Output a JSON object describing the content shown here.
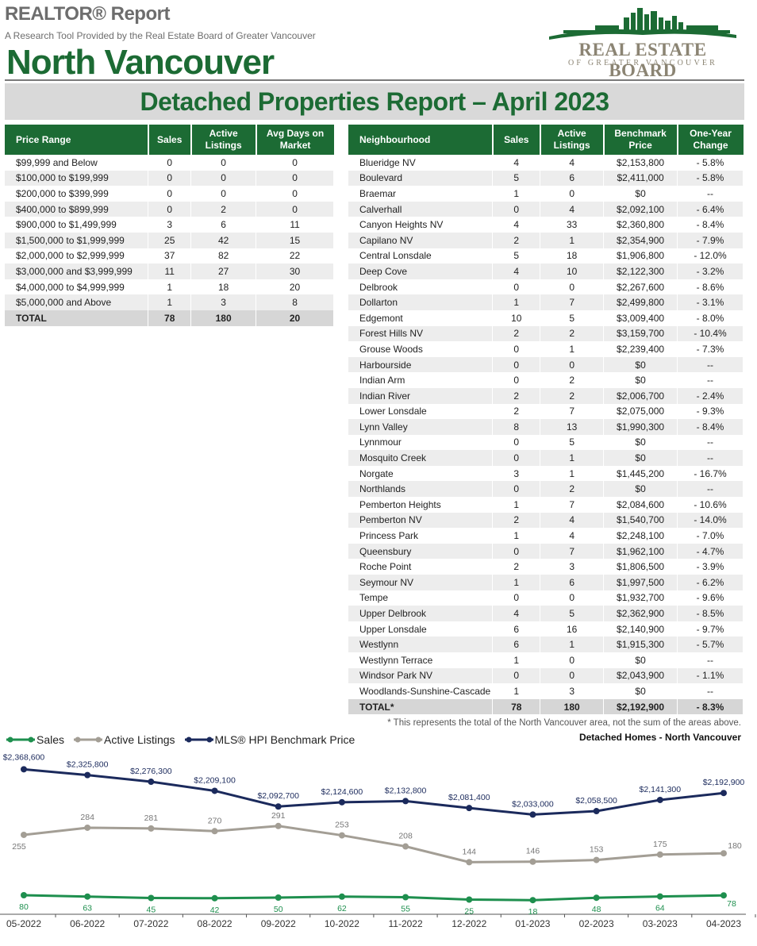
{
  "header": {
    "report_title": "REALTOR® Report",
    "subtitle": "A Research Tool Provided by the Real Estate Board of Greater Vancouver",
    "area": "North Vancouver",
    "logo_name": "REAL ESTATE BOARD",
    "logo_sub": "OF GREATER VANCOUVER",
    "banner": "Detached Properties Report – April 2023"
  },
  "colors": {
    "green": "#1c6b34",
    "brand_green": "#1c6b34",
    "sales": "#1e8f4e",
    "active": "#a39e95",
    "hpi": "#1b2a5c"
  },
  "price_table": {
    "headers": [
      "Price Range",
      "Sales",
      "Active Listings",
      "Avg Days on Market"
    ],
    "rows": [
      [
        "$99,999 and Below",
        "0",
        "0",
        "0"
      ],
      [
        "$100,000 to $199,999",
        "0",
        "0",
        "0"
      ],
      [
        "$200,000 to $399,999",
        "0",
        "0",
        "0"
      ],
      [
        "$400,000 to $899,999",
        "0",
        "2",
        "0"
      ],
      [
        "$900,000 to $1,499,999",
        "3",
        "6",
        "11"
      ],
      [
        "$1,500,000 to $1,999,999",
        "25",
        "42",
        "15"
      ],
      [
        "$2,000,000 to $2,999,999",
        "37",
        "82",
        "22"
      ],
      [
        "$3,000,000 and $3,999,999",
        "11",
        "27",
        "30"
      ],
      [
        "$4,000,000 to $4,999,999",
        "1",
        "18",
        "20"
      ],
      [
        "$5,000,000 and Above",
        "1",
        "3",
        "8"
      ]
    ],
    "total": [
      "TOTAL",
      "78",
      "180",
      "20"
    ]
  },
  "neighbourhood_table": {
    "headers": [
      "Neighbourhood",
      "Sales",
      "Active Listings",
      "Benchmark Price",
      "One-Year Change"
    ],
    "rows": [
      [
        "Blueridge NV",
        "4",
        "4",
        "$2,153,800",
        "- 5.8%"
      ],
      [
        "Boulevard",
        "5",
        "6",
        "$2,411,000",
        "- 5.8%"
      ],
      [
        "Braemar",
        "1",
        "0",
        "$0",
        "--"
      ],
      [
        "Calverhall",
        "0",
        "4",
        "$2,092,100",
        "- 6.4%"
      ],
      [
        "Canyon Heights NV",
        "4",
        "33",
        "$2,360,800",
        "- 8.4%"
      ],
      [
        "Capilano NV",
        "2",
        "1",
        "$2,354,900",
        "- 7.9%"
      ],
      [
        "Central Lonsdale",
        "5",
        "18",
        "$1,906,800",
        "- 12.0%"
      ],
      [
        "Deep Cove",
        "4",
        "10",
        "$2,122,300",
        "- 3.2%"
      ],
      [
        "Delbrook",
        "0",
        "0",
        "$2,267,600",
        "- 8.6%"
      ],
      [
        "Dollarton",
        "1",
        "7",
        "$2,499,800",
        "- 3.1%"
      ],
      [
        "Edgemont",
        "10",
        "5",
        "$3,009,400",
        "- 8.0%"
      ],
      [
        "Forest Hills NV",
        "2",
        "2",
        "$3,159,700",
        "- 10.4%"
      ],
      [
        "Grouse Woods",
        "0",
        "1",
        "$2,239,400",
        "- 7.3%"
      ],
      [
        "Harbourside",
        "0",
        "0",
        "$0",
        "--"
      ],
      [
        "Indian Arm",
        "0",
        "2",
        "$0",
        "--"
      ],
      [
        "Indian River",
        "2",
        "2",
        "$2,006,700",
        "- 2.4%"
      ],
      [
        "Lower Lonsdale",
        "2",
        "7",
        "$2,075,000",
        "- 9.3%"
      ],
      [
        "Lynn Valley",
        "8",
        "13",
        "$1,990,300",
        "- 8.4%"
      ],
      [
        "Lynnmour",
        "0",
        "5",
        "$0",
        "--"
      ],
      [
        "Mosquito Creek",
        "0",
        "1",
        "$0",
        "--"
      ],
      [
        "Norgate",
        "3",
        "1",
        "$1,445,200",
        "- 16.7%"
      ],
      [
        "Northlands",
        "0",
        "2",
        "$0",
        "--"
      ],
      [
        "Pemberton Heights",
        "1",
        "7",
        "$2,084,600",
        "- 10.6%"
      ],
      [
        "Pemberton NV",
        "2",
        "4",
        "$1,540,700",
        "- 14.0%"
      ],
      [
        "Princess Park",
        "1",
        "4",
        "$2,248,100",
        "- 7.0%"
      ],
      [
        "Queensbury",
        "0",
        "7",
        "$1,962,100",
        "- 4.7%"
      ],
      [
        "Roche Point",
        "2",
        "3",
        "$1,806,500",
        "- 3.9%"
      ],
      [
        "Seymour NV",
        "1",
        "6",
        "$1,997,500",
        "- 6.2%"
      ],
      [
        "Tempe",
        "0",
        "0",
        "$1,932,700",
        "- 9.6%"
      ],
      [
        "Upper Delbrook",
        "4",
        "5",
        "$2,362,900",
        "- 8.5%"
      ],
      [
        "Upper Lonsdale",
        "6",
        "16",
        "$2,140,900",
        "- 9.7%"
      ],
      [
        "Westlynn",
        "6",
        "1",
        "$1,915,300",
        "- 5.7%"
      ],
      [
        "Westlynn Terrace",
        "1",
        "0",
        "$0",
        "--"
      ],
      [
        "Windsor Park NV",
        "0",
        "0",
        "$2,043,900",
        "- 1.1%"
      ],
      [
        "Woodlands-Sunshine-Cascade",
        "1",
        "3",
        "$0",
        "--"
      ]
    ],
    "total": [
      "TOTAL*",
      "78",
      "180",
      "$2,192,900",
      "- 8.3%"
    ]
  },
  "footnote": "* This represents the total of the North Vancouver area, not the sum of the areas above.",
  "chart_title": "Detached Homes - North Vancouver",
  "chart_data": {
    "type": "line",
    "categories": [
      "05-2022",
      "06-2022",
      "07-2022",
      "08-2022",
      "09-2022",
      "10-2022",
      "11-2022",
      "12-2022",
      "01-2023",
      "02-2023",
      "03-2023",
      "04-2023"
    ],
    "series": [
      {
        "name": "Sales",
        "values": [
          80,
          63,
          45,
          42,
          50,
          62,
          55,
          25,
          18,
          48,
          64,
          78
        ],
        "labels": [
          "80",
          "63",
          "45",
          "42",
          "50",
          "62",
          "55",
          "25",
          "18",
          "48",
          "64",
          "78"
        ]
      },
      {
        "name": "Active Listings",
        "values": [
          255,
          284,
          281,
          270,
          291,
          253,
          208,
          144,
          146,
          153,
          175,
          180
        ],
        "labels": [
          "255",
          "284",
          "281",
          "270",
          "291",
          "253",
          "208",
          "144",
          "146",
          "153",
          "175",
          "180"
        ]
      },
      {
        "name": "MLS® HPI Benchmark Price",
        "values": [
          2368600,
          2325800,
          2276300,
          2209100,
          2092700,
          2124600,
          2132800,
          2081400,
          2033000,
          2058500,
          2141300,
          2192900
        ],
        "labels": [
          "$2,368,600",
          "$2,325,800",
          "$2,276,300",
          "$2,209,100",
          "$2,092,700",
          "$2,124,600",
          "$2,132,800",
          "$2,081,400",
          "$2,033,000",
          "$2,058,500",
          "$2,141,300",
          "$2,192,900"
        ]
      }
    ],
    "legend": "top-left",
    "grid": false
  }
}
